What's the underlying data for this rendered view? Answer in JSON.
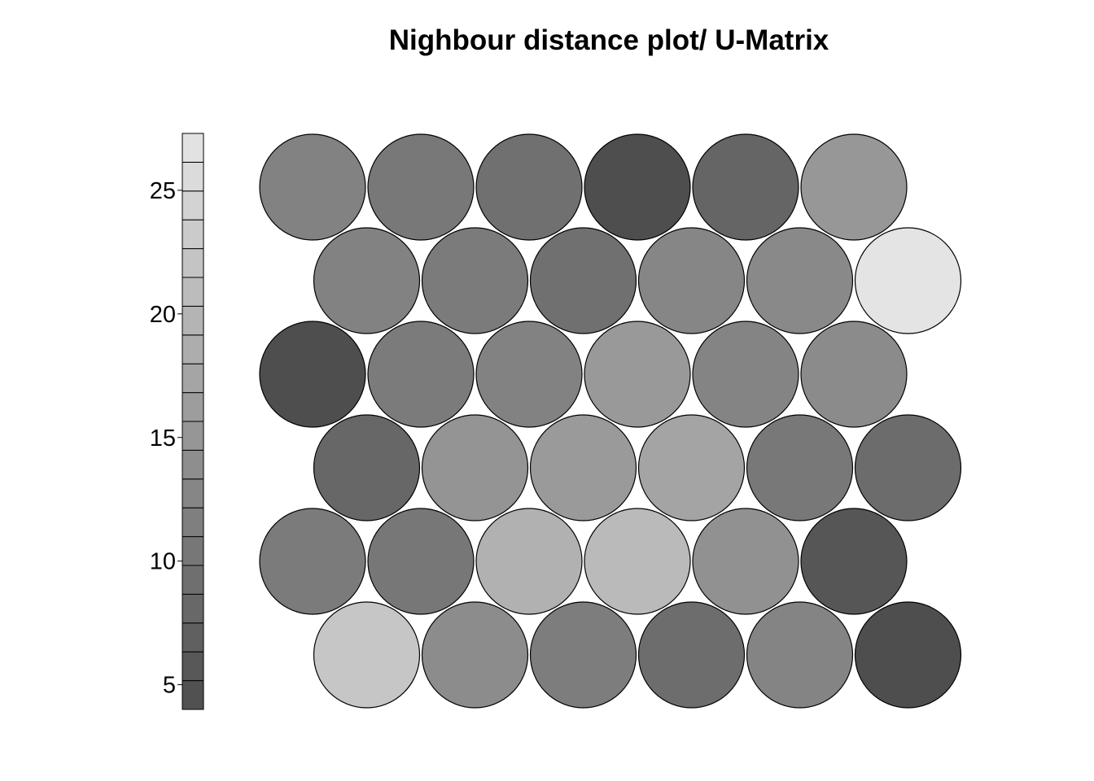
{
  "chart_data": {
    "type": "heatmap",
    "title": "Nighbour distance plot/ U-Matrix",
    "layout": "hexagonal",
    "grid": {
      "rows": 6,
      "cols": 6
    },
    "colorbar": {
      "min": 4,
      "max": 27.3,
      "ticks": [
        5,
        10,
        15,
        20,
        25
      ],
      "low_color": "#4d4d4d",
      "high_color": "#e6e6e6",
      "steps": 20
    },
    "rows": [
      [
        22.5,
        13.6,
        11.3,
        8.9,
        12.4,
        4.2
      ],
      [
        11.0,
        10.4,
        19.3,
        20.6,
        14.3,
        5.3
      ],
      [
        8.0,
        14.8,
        15.8,
        17.2,
        10.6,
        8.7
      ],
      [
        4.2,
        11.0,
        12.1,
        15.5,
        12.4,
        13.4
      ],
      [
        12.0,
        11.0,
        9.4,
        12.7,
        13.2,
        27.0
      ],
      [
        12.0,
        10.6,
        9.4,
        4.2,
        7.7,
        15.2
      ]
    ],
    "colors": {
      "border": "#000000",
      "background": "#ffffff"
    }
  }
}
